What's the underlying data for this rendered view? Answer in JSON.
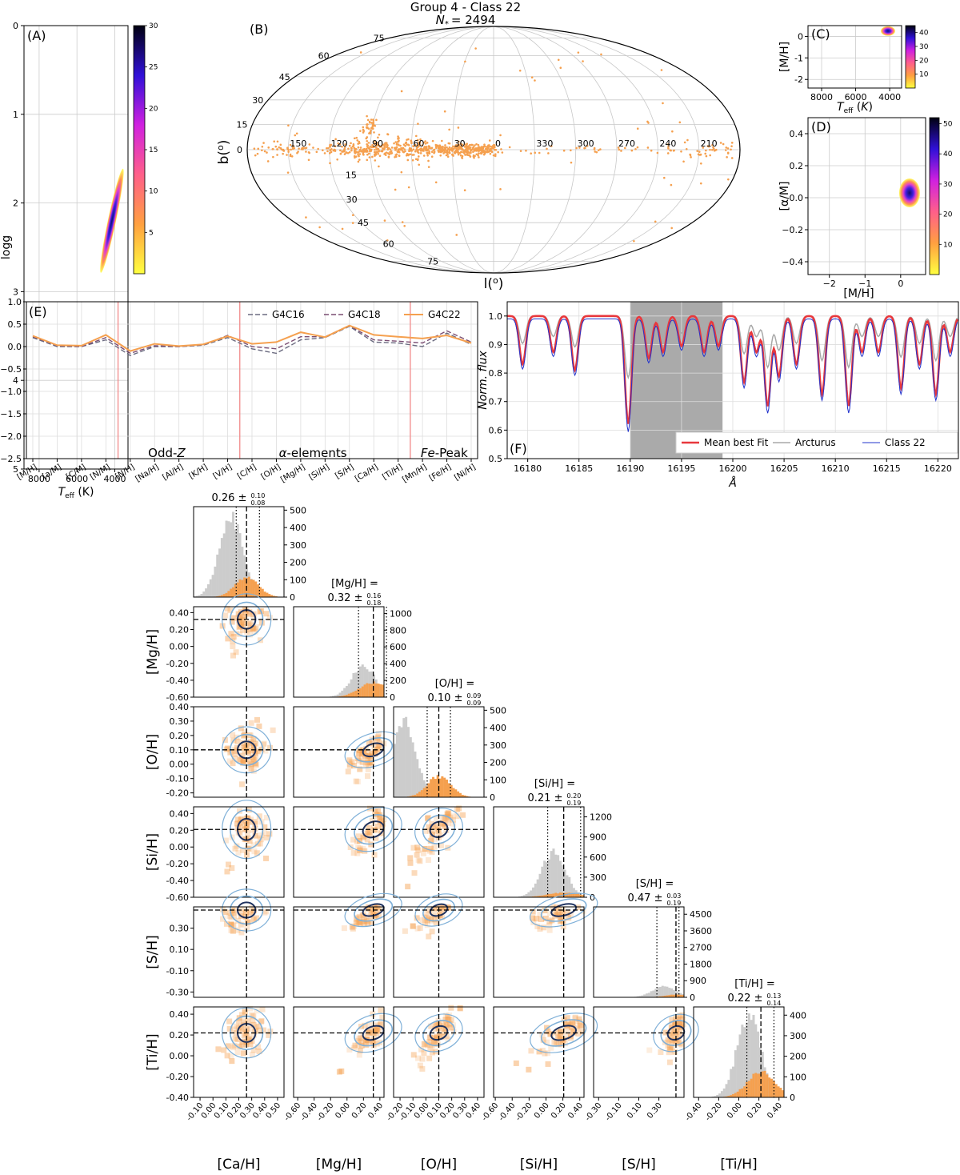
{
  "figure": {
    "title_line1": "Group 4 - Class 22",
    "title_line2": "N* = 2494",
    "title_prefix": "N",
    "title_star": "*",
    "title_value": "= 2494"
  },
  "panel_labels": [
    "(A)",
    "(B)",
    "(C)",
    "(D)",
    "(E)",
    "(F)"
  ],
  "colors": {
    "orange": "#f5a04f",
    "grey": "#9e9e9e",
    "red": "#e8383d",
    "blue": "#2233cc",
    "contour_dark": "#1f3360",
    "contour_light": "#7fb0d8"
  },
  "chart_data": [
    {
      "id": "A",
      "type": "heatmap",
      "xlabel": "T_eff (K)",
      "ylabel": "log g",
      "xlim": [
        8800,
        3300
      ],
      "ylim": [
        5,
        0
      ],
      "xticks": [
        8000,
        6000,
        4000
      ],
      "yticks": [
        0,
        1,
        2,
        3,
        4,
        5
      ],
      "colorbar": {
        "min": 0,
        "max": 30,
        "ticks": [
          5,
          10,
          15,
          20,
          25,
          30
        ]
      },
      "blob": {
        "teff_center": 4150,
        "logg_center": 2.2,
        "teff_range": [
          3950,
          4380
        ],
        "logg_range": [
          1.6,
          2.8
        ]
      }
    },
    {
      "id": "B",
      "type": "scatter",
      "projection": "mollweide",
      "xlabel": "l(o)",
      "ylabel": "b(o)",
      "l_ticks": [
        "150",
        "120",
        "90",
        "60",
        "30",
        "0",
        "330",
        "300",
        "270",
        "240",
        "210"
      ],
      "b_ticks_north": [
        "75",
        "60",
        "45",
        "30",
        "15",
        "0"
      ],
      "b_ticks_south": [
        "75",
        "60",
        "45",
        "30",
        "15"
      ],
      "n_stars": 2494
    },
    {
      "id": "C",
      "type": "heatmap",
      "xlabel": "T_eff (K)",
      "ylabel": "[M/H]",
      "xlim": [
        8800,
        3300
      ],
      "ylim": [
        -2.4,
        0.5
      ],
      "xticks": [
        8000,
        6000,
        4000
      ],
      "yticks": [
        0,
        -1,
        -2
      ],
      "colorbar": {
        "min": 0,
        "max": 45,
        "ticks": [
          10,
          20,
          30,
          40
        ]
      },
      "blob": {
        "teff_center": 4100,
        "mh_center": 0.25
      }
    },
    {
      "id": "D",
      "type": "heatmap",
      "xlabel": "[M/H]",
      "ylabel": "[α/M]",
      "xlim": [
        -2.6,
        0.7
      ],
      "ylim": [
        -0.48,
        0.5
      ],
      "xticks": [
        -2,
        -1,
        0
      ],
      "yticks": [
        0.4,
        0.2,
        0.0,
        -0.2,
        -0.4
      ],
      "colorbar": {
        "min": 0,
        "max": 52,
        "ticks": [
          10,
          20,
          30,
          40,
          50
        ]
      },
      "blob": {
        "mh_center": 0.25,
        "am_center": 0.03
      }
    },
    {
      "id": "E",
      "type": "line",
      "categories": [
        "[M/H]",
        "[a/M]",
        "[C/M]",
        "[N/M]",
        "[N/H]",
        "[Na/H]",
        "[Al/H]",
        "[K/H]",
        "[V/H]",
        "[C/H]",
        "[O/H]",
        "[Mg/H]",
        "[Si/H]",
        "[S/H]",
        "[Ca/H]",
        "[Ti/H]",
        "[Mn/H]",
        "[Fe/H]",
        "[Ni/H]"
      ],
      "ylim": [
        -2.5,
        1.0
      ],
      "yticks": [
        1.0,
        0.5,
        0.0,
        -0.5,
        -1.0,
        -1.5,
        -2.0,
        -2.5
      ],
      "series": [
        {
          "name": "G4C16",
          "values": [
            0.2,
            0.0,
            0.0,
            0.15,
            -0.2,
            0.0,
            0.0,
            0.03,
            0.2,
            -0.05,
            -0.15,
            0.15,
            0.2,
            0.45,
            0.1,
            0.08,
            0.0,
            0.3,
            0.05
          ]
        },
        {
          "name": "G4C18",
          "values": [
            0.22,
            0.02,
            0.0,
            0.2,
            -0.15,
            0.02,
            0.0,
            0.04,
            0.25,
            0.0,
            -0.05,
            0.22,
            0.22,
            0.47,
            0.15,
            0.12,
            0.08,
            0.35,
            0.1
          ]
        },
        {
          "name": "G4C22",
          "values": [
            0.24,
            0.03,
            0.02,
            0.26,
            -0.1,
            0.06,
            0.01,
            0.05,
            0.23,
            0.06,
            0.1,
            0.32,
            0.21,
            0.47,
            0.26,
            0.22,
            0.18,
            0.25,
            0.08
          ]
        }
      ],
      "vlines_after_index": [
        3,
        8,
        15
      ],
      "group_labels": [
        "Odd-Z",
        "α-elements",
        "Fe-Peak"
      ]
    },
    {
      "id": "F",
      "type": "line",
      "xlabel": "Å",
      "ylabel": "Norm. flux",
      "xlim": [
        16178,
        16222
      ],
      "ylim": [
        0.5,
        1.05
      ],
      "xticks": [
        16180,
        16185,
        16190,
        16195,
        16200,
        16205,
        16210,
        16215,
        16220
      ],
      "yticks": [
        0.5,
        0.6,
        0.7,
        0.8,
        0.9,
        1.0
      ],
      "shaded_range": [
        16190,
        16199
      ],
      "legend": [
        "Mean best Fit",
        "Arcturus",
        "Class 22"
      ]
    },
    {
      "id": "corner",
      "type": "scatter",
      "variables": [
        "[Ca/H]",
        "[Mg/H]",
        "[O/H]",
        "[Si/H]",
        "[S/H]",
        "[Ti/H]"
      ],
      "diag_titles": [
        {
          "name": "[Ca/H]",
          "value": "0.26",
          "plus": "0.10",
          "minus": "0.08",
          "text_line2": "0.26 ±"
        },
        {
          "name": "[Mg/H]",
          "value": "0.32",
          "plus": "0.16",
          "minus": "0.18",
          "text_line1": "[Mg/H] =",
          "text_line2": "0.32 ±"
        },
        {
          "name": "[O/H]",
          "value": "0.10",
          "plus": "0.09",
          "minus": "0.09",
          "text_line1": "[O/H] =",
          "text_line2": "0.10 ±"
        },
        {
          "name": "[Si/H]",
          "value": "0.21",
          "plus": "0.20",
          "minus": "0.19",
          "text_line1": "[Si/H] =",
          "text_line2": "0.21 ±"
        },
        {
          "name": "[S/H]",
          "value": "0.47",
          "plus": "0.03",
          "minus": "0.19",
          "text_line1": "[S/H] =",
          "text_line2": "0.47 ±"
        },
        {
          "name": "[Ti/H]",
          "value": "0.22",
          "plus": "0.13",
          "minus": "0.14",
          "text_line1": "[Ti/H] =",
          "text_line2": "0.22 ±"
        }
      ],
      "median": [
        0.26,
        0.32,
        0.1,
        0.21,
        0.47,
        0.22
      ],
      "lo": [
        0.18,
        0.14,
        0.01,
        0.02,
        0.28,
        0.08
      ],
      "hi": [
        0.36,
        0.48,
        0.19,
        0.41,
        0.5,
        0.35
      ],
      "xlim": [
        [
          -0.15,
          0.55
        ],
        [
          -0.65,
          0.45
        ],
        [
          -0.25,
          0.45
        ],
        [
          -0.62,
          0.45
        ],
        [
          -0.35,
          0.55
        ],
        [
          -0.45,
          0.45
        ]
      ],
      "ylim": [
        [
          -0.15,
          0.55
        ],
        [
          -0.6,
          0.47
        ],
        [
          -0.23,
          0.4
        ],
        [
          -0.6,
          0.48
        ],
        [
          -0.35,
          0.5
        ],
        [
          -0.4,
          0.47
        ]
      ],
      "xticks": [
        [
          "-0.10",
          "0.00",
          "0.10",
          "0.20",
          "0.30",
          "0.40",
          "0.50"
        ],
        [
          "-0.60",
          "-0.40",
          "-0.20",
          "0.00",
          "0.20",
          "0.40"
        ],
        [
          "-0.20",
          "-0.10",
          "0.00",
          "0.10",
          "0.20",
          "0.30",
          "0.40"
        ],
        [
          "-0.60",
          "-0.40",
          "-0.20",
          "0.00",
          "0.20",
          "0.40"
        ],
        [
          "-0.30",
          "-0.10",
          "0.10",
          "0.30"
        ],
        [
          "-0.40",
          "-0.20",
          "0.00",
          "0.20",
          "0.40"
        ]
      ],
      "yticks": [
        [],
        [
          "0.40",
          "0.20",
          "0.00",
          "-0.20",
          "-0.40",
          "-0.60"
        ],
        [
          "0.40",
          "0.30",
          "0.20",
          "0.10",
          "0.00",
          "-0.10",
          "-0.20"
        ],
        [
          "0.40",
          "0.20",
          "0.00",
          "-0.20",
          "-0.40",
          "-0.60"
        ],
        [
          "0.30",
          "0.10",
          "-0.10",
          "-0.30"
        ],
        [
          "0.40",
          "0.20",
          "0.00",
          "-0.20",
          "-0.40"
        ]
      ],
      "hist_yticks": [
        [
          "0",
          "100",
          "200",
          "300",
          "400",
          "500"
        ],
        [
          "0",
          "200",
          "400",
          "600",
          "800",
          "1000"
        ],
        [
          "0",
          "100",
          "200",
          "300",
          "400",
          "500"
        ],
        [
          "0",
          "300",
          "600",
          "900",
          "1200"
        ],
        [
          "0",
          "900",
          "1800",
          "2700",
          "3600",
          "4500"
        ],
        [
          "0",
          "100",
          "200",
          "300",
          "400"
        ]
      ],
      "hist_ymax": [
        520,
        1080,
        520,
        1350,
        4900,
        440
      ]
    }
  ]
}
